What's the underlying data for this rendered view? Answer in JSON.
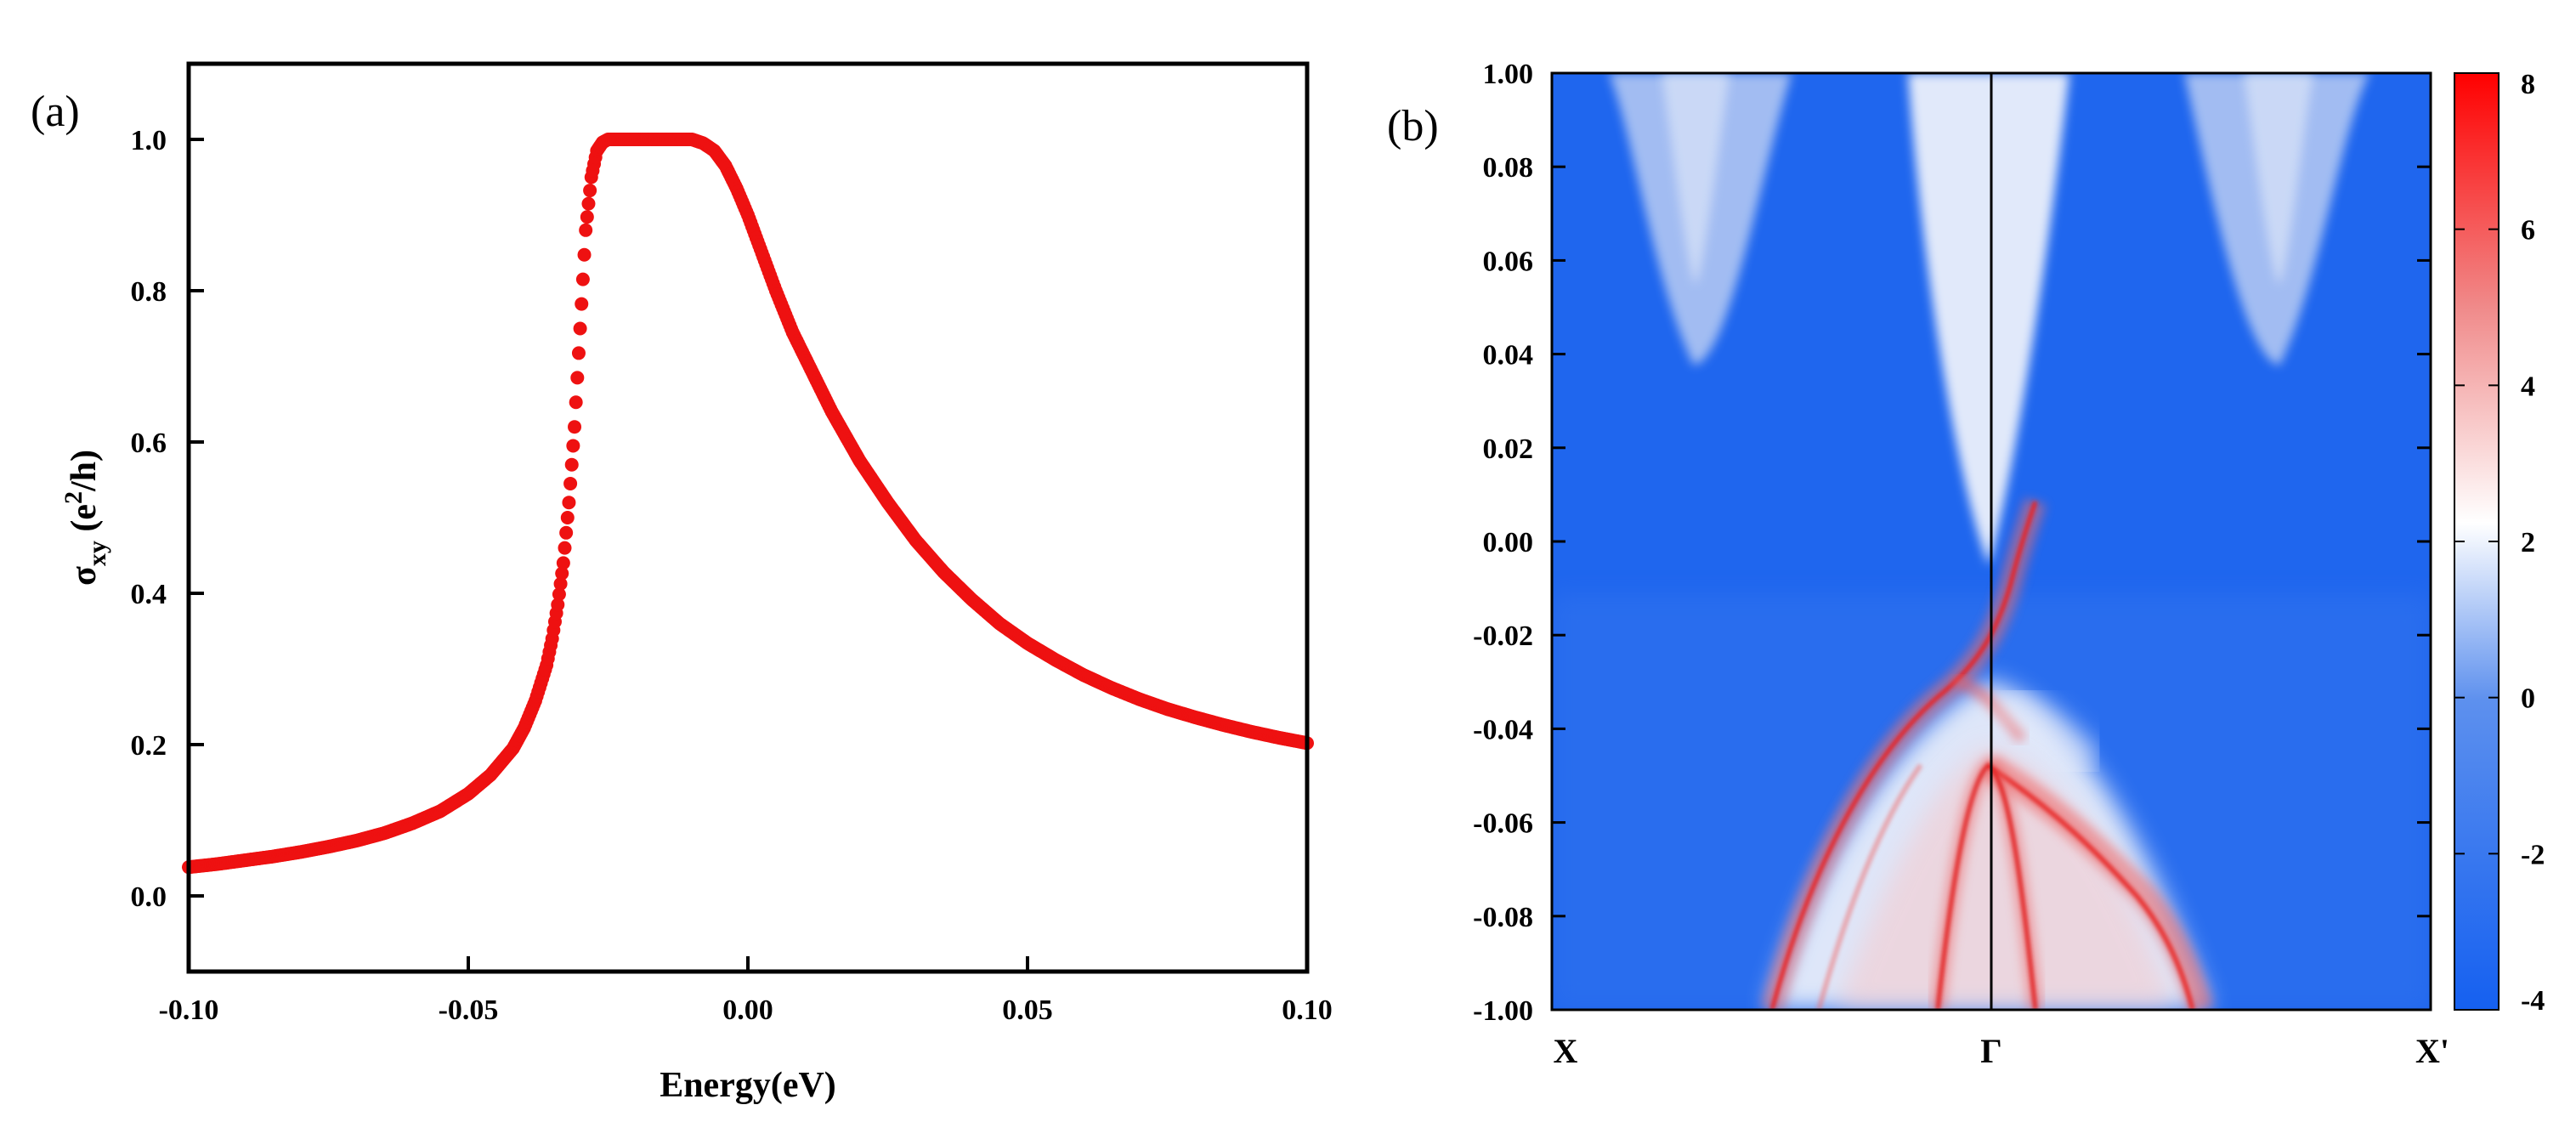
{
  "chart_data": [
    {
      "panel_label": "(a)",
      "type": "scatter",
      "title": "",
      "xlabel": "Energy(eV)",
      "ylabel_main": "σ",
      "ylabel_sub": "xy",
      "ylabel_tail": " (e",
      "ylabel_sup": "2",
      "ylabel_end": "/h)",
      "xlim": [
        -0.1,
        0.1
      ],
      "ylim": [
        -0.1,
        1.1
      ],
      "xticks": [
        -0.1,
        -0.05,
        0.0,
        0.05,
        0.1
      ],
      "xtick_labels": [
        "-0.10",
        "-0.05",
        "0.00",
        "0.05",
        "0.10"
      ],
      "yticks": [
        0.0,
        0.2,
        0.4,
        0.6,
        0.8,
        1.0
      ],
      "ytick_labels": [
        "0.0",
        "0.2",
        "0.4",
        "0.6",
        "0.8",
        "1.0"
      ],
      "marker_color": "#ee1111",
      "series": [
        {
          "name": "sigma_xy",
          "x": [
            -0.1,
            -0.095,
            -0.09,
            -0.085,
            -0.08,
            -0.075,
            -0.07,
            -0.065,
            -0.06,
            -0.055,
            -0.05,
            -0.046,
            -0.042,
            -0.04,
            -0.038,
            -0.036,
            -0.035,
            -0.034,
            -0.033,
            -0.032,
            -0.031,
            -0.03,
            -0.029,
            -0.028,
            -0.027,
            -0.026,
            -0.025,
            -0.024,
            -0.022,
            -0.02,
            -0.015,
            -0.01,
            -0.008,
            -0.006,
            -0.004,
            -0.002,
            0.0,
            0.002,
            0.005,
            0.008,
            0.01,
            0.015,
            0.02,
            0.025,
            0.03,
            0.035,
            0.04,
            0.045,
            0.05,
            0.055,
            0.06,
            0.065,
            0.07,
            0.075,
            0.08,
            0.085,
            0.09,
            0.095,
            0.1
          ],
          "y": [
            0.038,
            0.042,
            0.047,
            0.052,
            0.058,
            0.065,
            0.073,
            0.083,
            0.096,
            0.112,
            0.135,
            0.16,
            0.195,
            0.222,
            0.258,
            0.305,
            0.34,
            0.385,
            0.44,
            0.52,
            0.62,
            0.75,
            0.88,
            0.95,
            0.985,
            0.996,
            1.0,
            1.0,
            1.0,
            1.0,
            1.0,
            1.0,
            0.995,
            0.985,
            0.965,
            0.935,
            0.9,
            0.86,
            0.8,
            0.745,
            0.715,
            0.64,
            0.575,
            0.52,
            0.47,
            0.428,
            0.392,
            0.36,
            0.334,
            0.312,
            0.292,
            0.275,
            0.26,
            0.247,
            0.236,
            0.226,
            0.217,
            0.209,
            0.202
          ]
        }
      ]
    },
    {
      "panel_label": "(b)",
      "type": "heatmap",
      "title": "",
      "ylim": [
        -1.0,
        1.0
      ],
      "ytick_labels": [
        "1.00",
        "0.08",
        "0.06",
        "0.04",
        "0.02",
        "0.00",
        "-0.02",
        "-0.04",
        "-0.06",
        "-0.08",
        "-1.00"
      ],
      "xtick_labels": [
        "X",
        "Γ",
        "X'"
      ],
      "gamma_position": 0.5,
      "colorbar": {
        "range": [
          -4,
          8
        ],
        "ticks": [
          8,
          6,
          4,
          2,
          0,
          -2,
          -4
        ],
        "tick_labels": [
          "8",
          "6",
          "4",
          "2",
          "0",
          "-2",
          "-4"
        ],
        "colors": [
          "#1560f0",
          "#5d90ee",
          "#ffffff",
          "#f08a8a",
          "#ff0000"
        ]
      },
      "background_color": "#1f66ee",
      "features": [
        {
          "name": "bulk-conduction-pocket-left",
          "center_k": 0.16,
          "min_energy": 0.036,
          "color": "#b9ccf3"
        },
        {
          "name": "bulk-conduction-pocket-center",
          "center_k": 0.5,
          "min_energy": 0.003,
          "color": "#dde7fa"
        },
        {
          "name": "bulk-conduction-pocket-right",
          "center_k": 0.84,
          "min_energy": 0.036,
          "color": "#b9ccf3"
        },
        {
          "name": "edge-state",
          "description": "chiral edge state crossing Gamma",
          "color": "#ee2222"
        },
        {
          "name": "bulk-valence-bands",
          "color": "#ee3333"
        }
      ]
    }
  ]
}
